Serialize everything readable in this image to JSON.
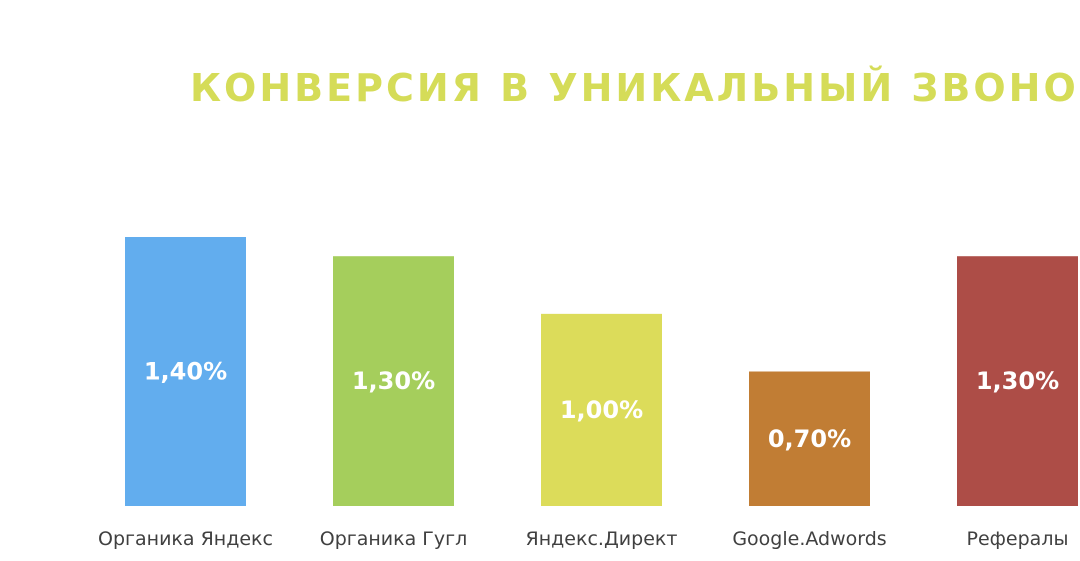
{
  "chart_data": {
    "type": "bar",
    "title": "КОНВЕРСИЯ В УНИКАЛЬНЫЙ ЗВОНОК",
    "categories": [
      "Органика Яндекс",
      "Органика Гугл",
      "Яндекс.Директ",
      "Google.Adwords",
      "Рефералы"
    ],
    "values": [
      1.4,
      1.3,
      1.0,
      0.7,
      1.3
    ],
    "value_labels": [
      "1,40%",
      "1,30%",
      "1,00%",
      "0,70%",
      "1,30%"
    ],
    "colors": [
      "#62adee",
      "#a5ce5c",
      "#dcdc5a",
      "#c17d34",
      "#ad4d47"
    ],
    "unit": "%",
    "ylim": [
      0,
      1.4
    ],
    "grid": false,
    "legend": "none"
  },
  "colors": {
    "title": "#d5dc58",
    "category_text": "#404040",
    "value_text": "#ffffff"
  }
}
